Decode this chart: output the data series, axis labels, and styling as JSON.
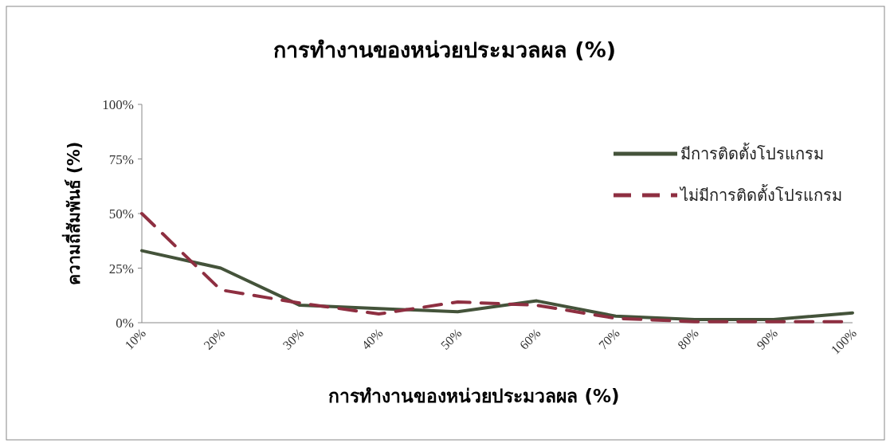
{
  "chart_data": {
    "type": "line",
    "title": "การทำงานของหน่วยประมวลผล (%)",
    "xlabel": "การทำงานของหน่วยประมวลผล (%)",
    "ylabel": "ความถี่สัมพันธ์ (%)",
    "categories": [
      "10%",
      "20%",
      "30%",
      "40%",
      "50%",
      "60%",
      "70%",
      "80%",
      "90%",
      "100%"
    ],
    "ylim": [
      0,
      100
    ],
    "yticks": [
      {
        "value": 0,
        "label": "0%"
      },
      {
        "value": 25,
        "label": "25%"
      },
      {
        "value": 50,
        "label": "50%"
      },
      {
        "value": 75,
        "label": "75%"
      },
      {
        "value": 100,
        "label": "100%"
      }
    ],
    "grid": false,
    "legend": "right",
    "marker": "none",
    "series": [
      {
        "name": "มีการติดตั้งโปรแกรม",
        "color": "#44533a",
        "line_style": "solid",
        "values": [
          33,
          25,
          8,
          6.5,
          5,
          10,
          3,
          1.5,
          1.5,
          4.5
        ]
      },
      {
        "name": "ไม่มีการติดตั้งโปรแกรม",
        "color": "#8e2f41",
        "line_style": "dashed",
        "values": [
          50,
          15,
          9,
          4,
          9.5,
          8,
          2,
          0.5,
          0.5,
          0.5
        ]
      }
    ]
  }
}
